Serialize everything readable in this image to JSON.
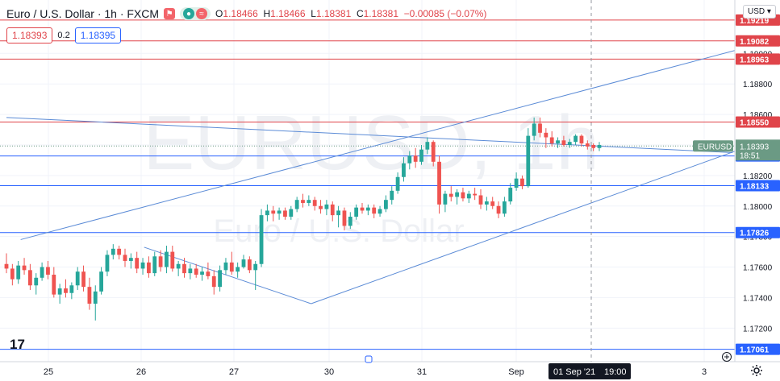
{
  "header": {
    "symbol_title": "Euro / U.S. Dollar · 1h · FXCM",
    "ohlc": {
      "o_label": "O",
      "o": "1.18466",
      "h_label": "H",
      "h": "1.18466",
      "l_label": "L",
      "l": "1.18381",
      "c_label": "C",
      "c": "1.18381",
      "change": "−0.00085 (−0.07%)"
    },
    "currency_button": "USD"
  },
  "quote": {
    "sell": "1.18393",
    "spread": "0.2",
    "buy": "1.18395"
  },
  "watermark": {
    "ticker": "EURUSD, 1h",
    "name": "Euro / U.S. Dollar"
  },
  "colors": {
    "up": "#26a69a",
    "down": "#ef5350",
    "resistance": "#e0444a",
    "support": "#2962ff",
    "channel": "#5b8bd6",
    "price_tag": "#6b9a84",
    "background": "#ffffff"
  },
  "icons": [
    "tradingview-logo-icon",
    "gear-icon",
    "plus-circle-icon",
    "red-flag-icon",
    "eye-icon"
  ],
  "chart_data": {
    "type": "candlestick",
    "symbol": "EURUSD",
    "timeframe": "1h",
    "ylim": [
      1.1698,
      1.1935
    ],
    "y_ticks": [
      "1.17200",
      "1.17400",
      "1.17600",
      "1.17800",
      "1.18000",
      "1.18200",
      "1.18400",
      "1.18600",
      "1.18800",
      "1.19000"
    ],
    "x_ticks": [
      "25",
      "26",
      "27",
      "30",
      "31",
      "Sep",
      "3"
    ],
    "crosshair_label": "01 Sep '21",
    "crosshair_time": "19:00",
    "last_price": {
      "label": "EURUSD",
      "value": "1.18393",
      "countdown": "18:51"
    },
    "horizontal_levels": [
      {
        "value": "1.19219",
        "kind": "resistance"
      },
      {
        "value": "1.19082",
        "kind": "resistance"
      },
      {
        "value": "1.18963",
        "kind": "resistance"
      },
      {
        "value": "1.18550",
        "kind": "resistance"
      },
      {
        "value": "1.18328",
        "kind": "support"
      },
      {
        "value": "1.18133",
        "kind": "support"
      },
      {
        "value": "1.17826",
        "kind": "support"
      },
      {
        "value": "1.17061",
        "kind": "support"
      }
    ],
    "trend_lines": [
      {
        "name": "channel-upper",
        "points": [
          [
            0.5,
            1.1778
          ],
          [
            25.8,
            1.1903
          ]
        ]
      },
      {
        "name": "channel-lower",
        "points": [
          [
            10.7,
            1.1736
          ],
          [
            25.6,
            1.1836
          ]
        ]
      },
      {
        "name": "descending-line",
        "points": [
          [
            0,
            1.1858
          ],
          [
            25.5,
            1.1835
          ]
        ]
      }
    ],
    "candles": [
      {
        "o": 1.1762,
        "h": 1.1769,
        "l": 1.1756,
        "c": 1.1759
      },
      {
        "o": 1.1759,
        "h": 1.1762,
        "l": 1.1748,
        "c": 1.1752
      },
      {
        "o": 1.1752,
        "h": 1.1764,
        "l": 1.1749,
        "c": 1.1761
      },
      {
        "o": 1.1761,
        "h": 1.1766,
        "l": 1.1755,
        "c": 1.1758
      },
      {
        "o": 1.1758,
        "h": 1.1762,
        "l": 1.1745,
        "c": 1.1748
      },
      {
        "o": 1.1748,
        "h": 1.1756,
        "l": 1.1742,
        "c": 1.1753
      },
      {
        "o": 1.1753,
        "h": 1.1763,
        "l": 1.1751,
        "c": 1.176
      },
      {
        "o": 1.176,
        "h": 1.1764,
        "l": 1.1752,
        "c": 1.1755
      },
      {
        "o": 1.1755,
        "h": 1.176,
        "l": 1.174,
        "c": 1.1742
      },
      {
        "o": 1.1742,
        "h": 1.1749,
        "l": 1.1736,
        "c": 1.1746
      },
      {
        "o": 1.1746,
        "h": 1.1752,
        "l": 1.174,
        "c": 1.1743
      },
      {
        "o": 1.1743,
        "h": 1.175,
        "l": 1.1739,
        "c": 1.1748
      },
      {
        "o": 1.1748,
        "h": 1.176,
        "l": 1.1745,
        "c": 1.1757
      },
      {
        "o": 1.1757,
        "h": 1.1761,
        "l": 1.1744,
        "c": 1.1747
      },
      {
        "o": 1.1747,
        "h": 1.1753,
        "l": 1.1732,
        "c": 1.1736
      },
      {
        "o": 1.1736,
        "h": 1.1748,
        "l": 1.1725,
        "c": 1.1744
      },
      {
        "o": 1.1744,
        "h": 1.176,
        "l": 1.1742,
        "c": 1.1757
      },
      {
        "o": 1.1757,
        "h": 1.1771,
        "l": 1.1754,
        "c": 1.1768
      },
      {
        "o": 1.1768,
        "h": 1.1775,
        "l": 1.1765,
        "c": 1.1772
      },
      {
        "o": 1.1772,
        "h": 1.1774,
        "l": 1.1765,
        "c": 1.1768
      },
      {
        "o": 1.1768,
        "h": 1.1772,
        "l": 1.176,
        "c": 1.1764
      },
      {
        "o": 1.1764,
        "h": 1.1769,
        "l": 1.1759,
        "c": 1.1766
      },
      {
        "o": 1.1766,
        "h": 1.177,
        "l": 1.1756,
        "c": 1.1759
      },
      {
        "o": 1.1759,
        "h": 1.1766,
        "l": 1.1755,
        "c": 1.1763
      },
      {
        "o": 1.1763,
        "h": 1.1767,
        "l": 1.1753,
        "c": 1.1756
      },
      {
        "o": 1.1756,
        "h": 1.177,
        "l": 1.1754,
        "c": 1.1767
      },
      {
        "o": 1.1767,
        "h": 1.1771,
        "l": 1.1757,
        "c": 1.176
      },
      {
        "o": 1.176,
        "h": 1.1774,
        "l": 1.1756,
        "c": 1.177
      },
      {
        "o": 1.177,
        "h": 1.1774,
        "l": 1.1757,
        "c": 1.1759
      },
      {
        "o": 1.1759,
        "h": 1.1764,
        "l": 1.1754,
        "c": 1.1762
      },
      {
        "o": 1.1762,
        "h": 1.1766,
        "l": 1.1753,
        "c": 1.1756
      },
      {
        "o": 1.1756,
        "h": 1.1762,
        "l": 1.1752,
        "c": 1.1759
      },
      {
        "o": 1.1759,
        "h": 1.1762,
        "l": 1.1753,
        "c": 1.1755
      },
      {
        "o": 1.1755,
        "h": 1.176,
        "l": 1.1751,
        "c": 1.1757
      },
      {
        "o": 1.1757,
        "h": 1.1763,
        "l": 1.1752,
        "c": 1.1754
      },
      {
        "o": 1.1754,
        "h": 1.1758,
        "l": 1.1742,
        "c": 1.1747
      },
      {
        "o": 1.1747,
        "h": 1.1761,
        "l": 1.1744,
        "c": 1.1758
      },
      {
        "o": 1.1758,
        "h": 1.1766,
        "l": 1.1755,
        "c": 1.1763
      },
      {
        "o": 1.1763,
        "h": 1.177,
        "l": 1.1755,
        "c": 1.1757
      },
      {
        "o": 1.1757,
        "h": 1.1763,
        "l": 1.1753,
        "c": 1.176
      },
      {
        "o": 1.176,
        "h": 1.1768,
        "l": 1.1759,
        "c": 1.1765
      },
      {
        "o": 1.1765,
        "h": 1.1767,
        "l": 1.1756,
        "c": 1.1758
      },
      {
        "o": 1.1758,
        "h": 1.1764,
        "l": 1.1745,
        "c": 1.1762
      },
      {
        "o": 1.1762,
        "h": 1.1798,
        "l": 1.176,
        "c": 1.1794
      },
      {
        "o": 1.1794,
        "h": 1.1801,
        "l": 1.179,
        "c": 1.1797
      },
      {
        "o": 1.1797,
        "h": 1.18,
        "l": 1.179,
        "c": 1.1795
      },
      {
        "o": 1.1795,
        "h": 1.1799,
        "l": 1.1791,
        "c": 1.1797
      },
      {
        "o": 1.1797,
        "h": 1.1799,
        "l": 1.1791,
        "c": 1.1793
      },
      {
        "o": 1.1793,
        "h": 1.18,
        "l": 1.1791,
        "c": 1.1798
      },
      {
        "o": 1.1798,
        "h": 1.1806,
        "l": 1.1796,
        "c": 1.1804
      },
      {
        "o": 1.1804,
        "h": 1.1808,
        "l": 1.1799,
        "c": 1.1802
      },
      {
        "o": 1.1802,
        "h": 1.1807,
        "l": 1.18,
        "c": 1.1804
      },
      {
        "o": 1.1804,
        "h": 1.1806,
        "l": 1.1797,
        "c": 1.18
      },
      {
        "o": 1.18,
        "h": 1.1804,
        "l": 1.1795,
        "c": 1.1798
      },
      {
        "o": 1.1798,
        "h": 1.1804,
        "l": 1.1794,
        "c": 1.1801
      },
      {
        "o": 1.1801,
        "h": 1.1803,
        "l": 1.179,
        "c": 1.1794
      },
      {
        "o": 1.1794,
        "h": 1.18,
        "l": 1.1786,
        "c": 1.1797
      },
      {
        "o": 1.1797,
        "h": 1.1799,
        "l": 1.1784,
        "c": 1.1787
      },
      {
        "o": 1.1787,
        "h": 1.1796,
        "l": 1.1785,
        "c": 1.1793
      },
      {
        "o": 1.1793,
        "h": 1.1801,
        "l": 1.1791,
        "c": 1.1799
      },
      {
        "o": 1.1799,
        "h": 1.1802,
        "l": 1.1795,
        "c": 1.1797
      },
      {
        "o": 1.1797,
        "h": 1.1801,
        "l": 1.1794,
        "c": 1.1799
      },
      {
        "o": 1.1799,
        "h": 1.1801,
        "l": 1.1792,
        "c": 1.1795
      },
      {
        "o": 1.1795,
        "h": 1.18,
        "l": 1.1793,
        "c": 1.1798
      },
      {
        "o": 1.1798,
        "h": 1.1807,
        "l": 1.1796,
        "c": 1.1804
      },
      {
        "o": 1.1804,
        "h": 1.1813,
        "l": 1.1801,
        "c": 1.181
      },
      {
        "o": 1.181,
        "h": 1.1822,
        "l": 1.1808,
        "c": 1.1819
      },
      {
        "o": 1.1819,
        "h": 1.1832,
        "l": 1.1816,
        "c": 1.1828
      },
      {
        "o": 1.1828,
        "h": 1.1836,
        "l": 1.1824,
        "c": 1.1833
      },
      {
        "o": 1.1833,
        "h": 1.1838,
        "l": 1.1825,
        "c": 1.1829
      },
      {
        "o": 1.1829,
        "h": 1.184,
        "l": 1.1827,
        "c": 1.1837
      },
      {
        "o": 1.1837,
        "h": 1.1845,
        "l": 1.1834,
        "c": 1.1842
      },
      {
        "o": 1.1842,
        "h": 1.1843,
        "l": 1.1826,
        "c": 1.1829
      },
      {
        "o": 1.1829,
        "h": 1.1833,
        "l": 1.1795,
        "c": 1.1801
      },
      {
        "o": 1.1801,
        "h": 1.181,
        "l": 1.1796,
        "c": 1.1808
      },
      {
        "o": 1.1808,
        "h": 1.1813,
        "l": 1.1803,
        "c": 1.1806
      },
      {
        "o": 1.1806,
        "h": 1.1811,
        "l": 1.1801,
        "c": 1.1809
      },
      {
        "o": 1.1809,
        "h": 1.1812,
        "l": 1.1803,
        "c": 1.1805
      },
      {
        "o": 1.1805,
        "h": 1.181,
        "l": 1.1802,
        "c": 1.1808
      },
      {
        "o": 1.1808,
        "h": 1.1812,
        "l": 1.1804,
        "c": 1.1807
      },
      {
        "o": 1.1807,
        "h": 1.1811,
        "l": 1.1798,
        "c": 1.1801
      },
      {
        "o": 1.1801,
        "h": 1.1806,
        "l": 1.1797,
        "c": 1.1803
      },
      {
        "o": 1.1803,
        "h": 1.1806,
        "l": 1.1798,
        "c": 1.18
      },
      {
        "o": 1.18,
        "h": 1.1803,
        "l": 1.1792,
        "c": 1.1795
      },
      {
        "o": 1.1795,
        "h": 1.1806,
        "l": 1.1793,
        "c": 1.1803
      },
      {
        "o": 1.1803,
        "h": 1.1815,
        "l": 1.1801,
        "c": 1.1812
      },
      {
        "o": 1.1812,
        "h": 1.1822,
        "l": 1.181,
        "c": 1.1818
      },
      {
        "o": 1.1818,
        "h": 1.182,
        "l": 1.1811,
        "c": 1.1813
      },
      {
        "o": 1.1813,
        "h": 1.1851,
        "l": 1.1812,
        "c": 1.1846
      },
      {
        "o": 1.1846,
        "h": 1.1858,
        "l": 1.1843,
        "c": 1.1854
      },
      {
        "o": 1.1854,
        "h": 1.1858,
        "l": 1.1845,
        "c": 1.1848
      },
      {
        "o": 1.1848,
        "h": 1.1851,
        "l": 1.1838,
        "c": 1.1845
      },
      {
        "o": 1.1845,
        "h": 1.1849,
        "l": 1.1839,
        "c": 1.1841
      },
      {
        "o": 1.1841,
        "h": 1.1845,
        "l": 1.1838,
        "c": 1.1843
      },
      {
        "o": 1.1843,
        "h": 1.1846,
        "l": 1.1839,
        "c": 1.184
      },
      {
        "o": 1.184,
        "h": 1.1844,
        "l": 1.1838,
        "c": 1.1842
      },
      {
        "o": 1.1842,
        "h": 1.1847,
        "l": 1.184,
        "c": 1.1846
      },
      {
        "o": 1.1846,
        "h": 1.1847,
        "l": 1.1839,
        "c": 1.1841
      },
      {
        "o": 1.1841,
        "h": 1.1843,
        "l": 1.1837,
        "c": 1.1839
      },
      {
        "o": 1.184,
        "h": 1.1841,
        "l": 1.1836,
        "c": 1.1838
      },
      {
        "o": 1.1838,
        "h": 1.1842,
        "l": 1.1836,
        "c": 1.184
      }
    ]
  }
}
